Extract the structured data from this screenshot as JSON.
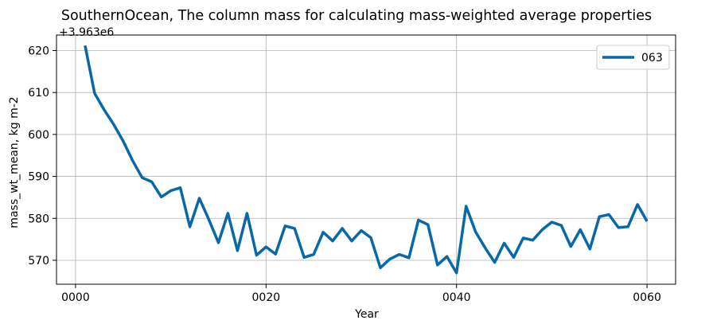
{
  "chart_data": {
    "type": "line",
    "title": "SouthernOcean, The column mass for calculating mass-weighted average properties",
    "xlabel": "Year",
    "ylabel": "mass_wt_mean, kg m-2",
    "y_offset_label": "+3.963e6",
    "xlim": [
      -2,
      63
    ],
    "ylim": [
      564.3,
      623.7
    ],
    "grid": true,
    "legend_position": "top-right",
    "x_ticks": [
      0,
      20,
      40,
      60
    ],
    "x_tick_labels": [
      "0000",
      "0020",
      "0040",
      "0060"
    ],
    "y_ticks": [
      570,
      580,
      590,
      600,
      610,
      620
    ],
    "y_tick_labels": [
      "570",
      "580",
      "590",
      "600",
      "610",
      "620"
    ],
    "series": [
      {
        "name": "063",
        "color": "#0868a8",
        "x": [
          1,
          2,
          3,
          4,
          5,
          6,
          7,
          8,
          9,
          10,
          11,
          12,
          13,
          14,
          15,
          16,
          17,
          18,
          19,
          20,
          21,
          22,
          23,
          24,
          25,
          26,
          27,
          28,
          29,
          30,
          31,
          32,
          33,
          34,
          35,
          36,
          37,
          38,
          39,
          40,
          41,
          42,
          43,
          44,
          45,
          46,
          47,
          48,
          49,
          50,
          51,
          52,
          53,
          54,
          55,
          56,
          57,
          58,
          59,
          60
        ],
        "values": [
          621.2,
          609.8,
          605.9,
          602.4,
          598.4,
          593.7,
          589.7,
          588.7,
          585.1,
          586.6,
          587.3,
          578.0,
          584.8,
          579.7,
          574.2,
          581.2,
          572.3,
          581.2,
          571.2,
          573.2,
          571.5,
          578.2,
          577.6,
          570.7,
          571.4,
          576.7,
          574.6,
          577.6,
          574.6,
          577.1,
          575.4,
          568.2,
          570.3,
          571.4,
          570.6,
          579.6,
          578.5,
          568.9,
          570.9,
          567.0,
          582.9,
          576.8,
          573.0,
          569.5,
          574.1,
          570.7,
          575.3,
          574.8,
          577.3,
          579.1,
          578.3,
          573.3,
          577.3,
          572.7,
          580.4,
          580.9,
          577.8,
          578.0,
          583.3,
          579.3
        ]
      }
    ]
  }
}
